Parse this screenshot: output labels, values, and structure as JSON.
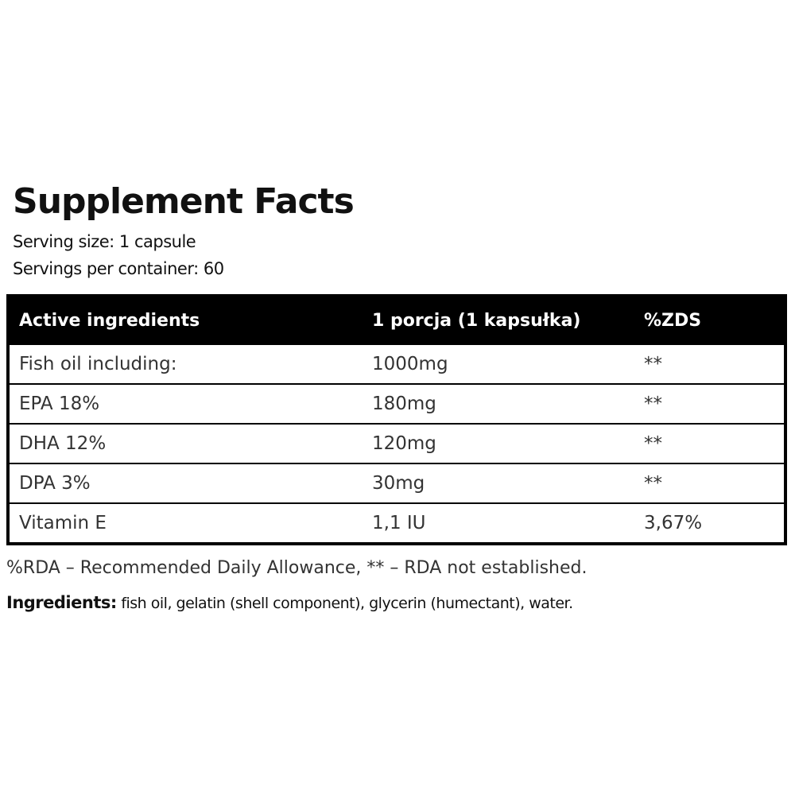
{
  "header": {
    "title": "Supplement Facts",
    "serving_size": "Serving size: 1 capsule",
    "servings_per_container": "Servings per container: 60"
  },
  "table": {
    "columns": [
      "Active ingredients",
      "1 porcja (1 kapsułka)",
      "%ZDS"
    ],
    "rows": [
      [
        "Fish oil including:",
        "1000mg",
        "**"
      ],
      [
        "EPA 18%",
        "180mg",
        "**"
      ],
      [
        "DHA 12%",
        "120mg",
        "**"
      ],
      [
        "DPA 3%",
        "30mg",
        "**"
      ],
      [
        "Vitamin E",
        "1,1 IU",
        "3,67%"
      ]
    ]
  },
  "footnote": "%RDA – Recommended Daily Allowance, ** – RDA not established.",
  "ingredients": {
    "label": "Ingredients:",
    "text": "fish oil, gelatin (shell component), glycerin (humectant), water."
  }
}
